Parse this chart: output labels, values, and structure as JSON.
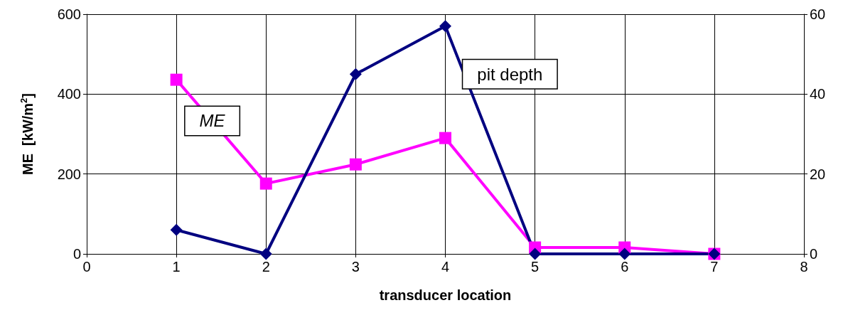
{
  "chart_data": {
    "type": "line",
    "xlabel": "transducer location",
    "ylabel": "ME  [kW/m$^{2}$]",
    "x": [
      1,
      2,
      3,
      4,
      5,
      6,
      7
    ],
    "series": [
      {
        "name": "ME",
        "color": "#ff00ff",
        "marker": "square",
        "values": [
          436,
          176,
          224,
          290,
          16,
          16,
          0
        ]
      },
      {
        "name": "pit depth",
        "color": "#000080",
        "marker": "diamond",
        "axis": "y2",
        "values": [
          6,
          0,
          45,
          57,
          0,
          0,
          0
        ]
      }
    ],
    "xlim": [
      0,
      8
    ],
    "xticks": [
      0,
      1,
      2,
      3,
      4,
      5,
      6,
      7,
      8
    ],
    "ylim": [
      0,
      600
    ],
    "yticks": [
      0,
      200,
      400,
      600
    ],
    "y2lim": [
      0,
      60
    ],
    "y2ticks": [
      0,
      20,
      40,
      60
    ],
    "grid": true,
    "legend": false,
    "line_style": "solid"
  }
}
